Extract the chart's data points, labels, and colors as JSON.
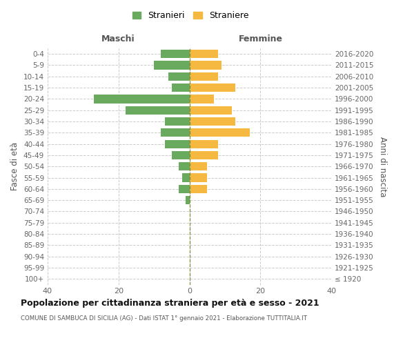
{
  "age_groups": [
    "100+",
    "95-99",
    "90-94",
    "85-89",
    "80-84",
    "75-79",
    "70-74",
    "65-69",
    "60-64",
    "55-59",
    "50-54",
    "45-49",
    "40-44",
    "35-39",
    "30-34",
    "25-29",
    "20-24",
    "15-19",
    "10-14",
    "5-9",
    "0-4"
  ],
  "birth_years": [
    "≤ 1920",
    "1921-1925",
    "1926-1930",
    "1931-1935",
    "1936-1940",
    "1941-1945",
    "1946-1950",
    "1951-1955",
    "1956-1960",
    "1961-1965",
    "1966-1970",
    "1971-1975",
    "1976-1980",
    "1981-1985",
    "1986-1990",
    "1991-1995",
    "1996-2000",
    "2001-2005",
    "2006-2010",
    "2011-2015",
    "2016-2020"
  ],
  "maschi": [
    0,
    0,
    0,
    0,
    0,
    0,
    0,
    1,
    3,
    2,
    3,
    5,
    7,
    8,
    7,
    18,
    27,
    5,
    6,
    10,
    8
  ],
  "femmine": [
    0,
    0,
    0,
    0,
    0,
    0,
    0,
    0,
    5,
    5,
    5,
    8,
    8,
    17,
    13,
    12,
    7,
    13,
    8,
    9,
    8
  ],
  "maschi_color": "#6aaa5e",
  "femmine_color": "#f5b942",
  "title": "Popolazione per cittadinanza straniera per età e sesso - 2021",
  "subtitle": "COMUNE DI SAMBUCA DI SICILIA (AG) - Dati ISTAT 1° gennaio 2021 - Elaborazione TUTTITALIA.IT",
  "ylabel_left": "Fasce di età",
  "ylabel_right": "Anni di nascita",
  "header_left": "Maschi",
  "header_right": "Femmine",
  "xlim": 40,
  "legend_maschi": "Stranieri",
  "legend_femmine": "Straniere"
}
